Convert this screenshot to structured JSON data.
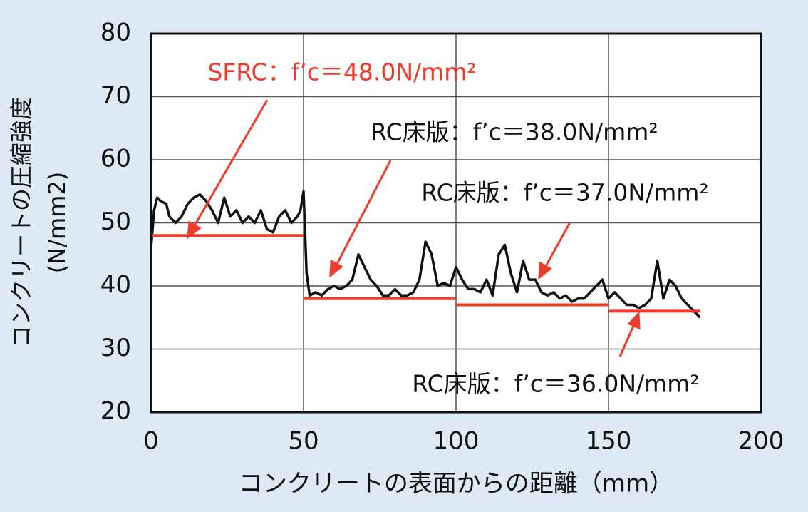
{
  "chart_data": {
    "type": "line",
    "x_label": "コンクリートの表面からの距離（mm）",
    "y_label": "コンクリートの圧縮強度",
    "y_unit": "(N/mm2)",
    "xlim": [
      0,
      200
    ],
    "xticks": [
      0,
      50,
      100,
      150,
      200
    ],
    "ylim": [
      20,
      80
    ],
    "yticks": [
      20,
      30,
      40,
      50,
      60,
      70,
      80
    ],
    "grid": true,
    "series": [
      {
        "color": "#111111",
        "x": [
          0,
          1,
          2,
          3,
          5,
          6,
          8,
          10,
          12,
          14,
          16,
          18,
          20,
          22,
          24,
          26,
          28,
          30,
          32,
          34,
          36,
          38,
          40,
          42,
          44,
          46,
          48,
          49,
          50,
          51,
          52,
          54,
          56,
          58,
          60,
          62,
          64,
          66,
          68,
          70,
          72,
          74,
          76,
          78,
          80,
          82,
          84,
          86,
          88,
          90,
          92,
          94,
          96,
          98,
          100,
          102,
          104,
          106,
          108,
          110,
          112,
          114,
          116,
          118,
          120,
          122,
          124,
          126,
          128,
          130,
          132,
          134,
          136,
          138,
          140,
          142,
          144,
          146,
          148,
          150,
          152,
          154,
          156,
          158,
          160,
          162,
          164,
          166,
          168,
          170,
          172,
          174,
          176,
          178,
          180
        ],
        "values": [
          46,
          52,
          54,
          53.5,
          53,
          51,
          50,
          51,
          53,
          54,
          54.5,
          53.5,
          52,
          50,
          54,
          51,
          52,
          50,
          51,
          50,
          52,
          49,
          48.5,
          51,
          52,
          50,
          51,
          52,
          55,
          42,
          38.5,
          39,
          38.5,
          39.5,
          40,
          39.5,
          40,
          41,
          45,
          43,
          41,
          40,
          38.5,
          38.5,
          39.5,
          38.5,
          38.5,
          39,
          41,
          47,
          45,
          40,
          40.5,
          40,
          43,
          41,
          39.5,
          39.5,
          39,
          41,
          38.5,
          45,
          46.5,
          42,
          39,
          44,
          41,
          41,
          39,
          38.5,
          39,
          38,
          38.5,
          37.5,
          38,
          38,
          39,
          40,
          41,
          38,
          39,
          38,
          37,
          37,
          36.5,
          37,
          38,
          44,
          38,
          41,
          40,
          38,
          37,
          36,
          35
        ]
      }
    ],
    "segments": [
      {
        "x_start": 0,
        "x_end": 50,
        "value": 48.0,
        "color": "#ee3b2e",
        "label": "SFRC：f’c＝48.0N/mm²"
      },
      {
        "x_start": 50,
        "x_end": 100,
        "value": 38.0,
        "color": "#ee3b2e",
        "label": "RC床版：f’c＝38.0N/mm²"
      },
      {
        "x_start": 100,
        "x_end": 150,
        "value": 37.0,
        "color": "#ee3b2e",
        "label": "RC床版：f’c＝37.0N/mm²"
      },
      {
        "x_start": 150,
        "x_end": 180,
        "value": 36.0,
        "color": "#ee3b2e",
        "label": "RC床版：f’c＝36.0N/mm²"
      }
    ]
  }
}
